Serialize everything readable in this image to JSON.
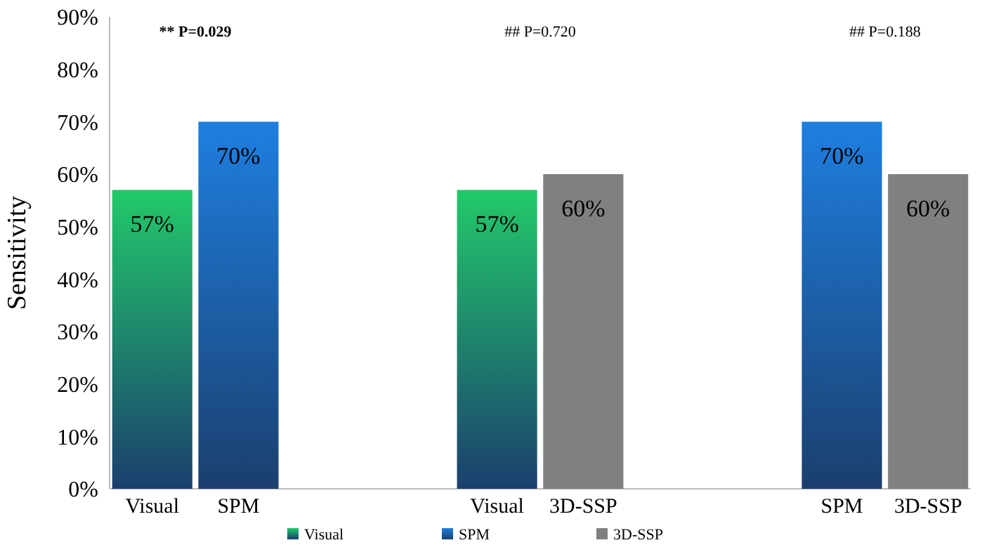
{
  "chart_data": {
    "type": "bar",
    "ylabel": "Sensitivity",
    "categories": [
      "Visual",
      "SPM",
      null,
      null,
      "Visual",
      "3D-SSP",
      null,
      null,
      "SPM",
      "3D-SSP"
    ],
    "series": [
      {
        "name": "Visual",
        "color": "#22c96a",
        "values": [
          57,
          null,
          null,
          null,
          57,
          null,
          null,
          null,
          null,
          null
        ],
        "value_labels": [
          "57%",
          null,
          null,
          null,
          "57%",
          null,
          null,
          null,
          null,
          null
        ]
      },
      {
        "name": "SPM",
        "color": "#1e7fe0",
        "values": [
          null,
          70,
          null,
          null,
          null,
          null,
          null,
          null,
          70,
          null
        ],
        "value_labels": [
          null,
          "70%",
          null,
          null,
          null,
          null,
          null,
          null,
          "70%",
          null
        ]
      },
      {
        "name": "3D-SSP",
        "color": "#808080",
        "values": [
          null,
          null,
          null,
          null,
          null,
          60,
          null,
          null,
          null,
          60
        ],
        "value_labels": [
          null,
          null,
          null,
          null,
          null,
          "60%",
          null,
          null,
          null,
          "60%"
        ]
      }
    ],
    "ylim": [
      0,
      90
    ],
    "yticks": [
      {
        "value": 0,
        "label": "0%"
      },
      {
        "value": 10,
        "label": "10%"
      },
      {
        "value": 20,
        "label": "20%"
      },
      {
        "value": 30,
        "label": "30%"
      },
      {
        "value": 40,
        "label": "40%"
      },
      {
        "value": 50,
        "label": "50%"
      },
      {
        "value": 60,
        "label": "60%"
      },
      {
        "value": 70,
        "label": "70%"
      },
      {
        "value": 80,
        "label": "80%"
      },
      {
        "value": 90,
        "label": "90%"
      }
    ],
    "annotations": [
      "** P=0.029",
      "## P=0.720",
      "## P=0.188"
    ],
    "grid": false,
    "legend": "bottom"
  }
}
